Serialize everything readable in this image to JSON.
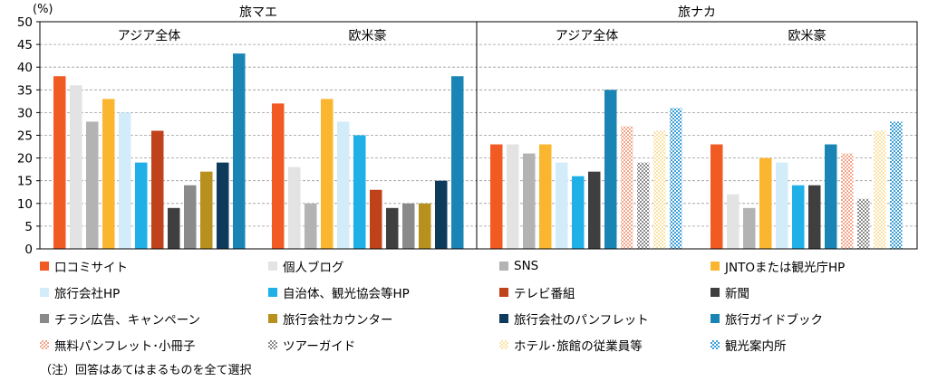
{
  "chart_data": {
    "type": "bar",
    "y_unit_label": "(%)",
    "ylim": [
      0,
      50
    ],
    "yticks": [
      "0",
      "5",
      "10",
      "15",
      "20",
      "25",
      "30",
      "35",
      "40",
      "45",
      "50"
    ],
    "grid": "horizontal dashed",
    "legend_position": "bottom",
    "panels": [
      {
        "title": "旅マエ",
        "groups": [
          {
            "label": "アジア全体",
            "values": [
              38,
              36,
              28,
              33,
              30,
              19,
              26,
              9,
              14,
              17,
              19,
              43
            ]
          },
          {
            "label": "欧米豪",
            "values": [
              32,
              18,
              10,
              33,
              28,
              25,
              13,
              9,
              10,
              10,
              15,
              38
            ]
          }
        ]
      },
      {
        "title": "旅ナカ",
        "groups": [
          {
            "label": "アジア全体",
            "values": [
              23,
              23,
              21,
              23,
              19,
              16,
              17,
              35,
              27,
              19,
              26,
              31
            ]
          },
          {
            "label": "欧米豪",
            "values": [
              23,
              12,
              9,
              20,
              19,
              14,
              14,
              23,
              21,
              11,
              26,
              28
            ]
          }
        ]
      }
    ],
    "series_order_travel_before": [
      0,
      1,
      2,
      3,
      4,
      5,
      6,
      7,
      8,
      9,
      10,
      11
    ],
    "series_order_travel_during": [
      0,
      1,
      2,
      3,
      4,
      5,
      7,
      11,
      12,
      13,
      14,
      15
    ],
    "series": [
      {
        "name": "口コミサイト",
        "color": "#f15a22",
        "pattern": "solid"
      },
      {
        "name": "個人ブログ",
        "color": "#e3e3e3",
        "pattern": "solid"
      },
      {
        "name": "SNS",
        "color": "#b3b3b3",
        "pattern": "solid"
      },
      {
        "name": "JNTOまたは観光庁HP",
        "color": "#fbb62f",
        "pattern": "solid"
      },
      {
        "name": "旅行会社HP",
        "color": "#d2ecfa",
        "pattern": "solid"
      },
      {
        "name": "自治体、観光協会等HP",
        "color": "#1fb0e8",
        "pattern": "solid"
      },
      {
        "name": "テレビ番組",
        "color": "#c0421a",
        "pattern": "solid"
      },
      {
        "name": "新聞",
        "color": "#3f3f3f",
        "pattern": "solid"
      },
      {
        "name": "チラシ広告、キャンペーン",
        "color": "#8a8a8a",
        "pattern": "solid"
      },
      {
        "name": "旅行会社カウンター",
        "color": "#b8901e",
        "pattern": "solid"
      },
      {
        "name": "旅行会社のパンフレット",
        "color": "#0e3a5c",
        "pattern": "solid"
      },
      {
        "name": "旅行ガイドブック",
        "color": "#1a85b5",
        "pattern": "solid"
      },
      {
        "name": "無料パンフレット･小冊子",
        "color": "#f4a58a",
        "pattern": "check"
      },
      {
        "name": "ツアーガイド",
        "color": "#8a8a8a",
        "pattern": "check"
      },
      {
        "name": "ホテル･旅館の従業員等",
        "color": "#fbe3a6",
        "pattern": "check"
      },
      {
        "name": "観光案内所",
        "color": "#3b9fd8",
        "pattern": "check"
      }
    ]
  },
  "note": "（注）回答はあてはまるものを全て選択"
}
